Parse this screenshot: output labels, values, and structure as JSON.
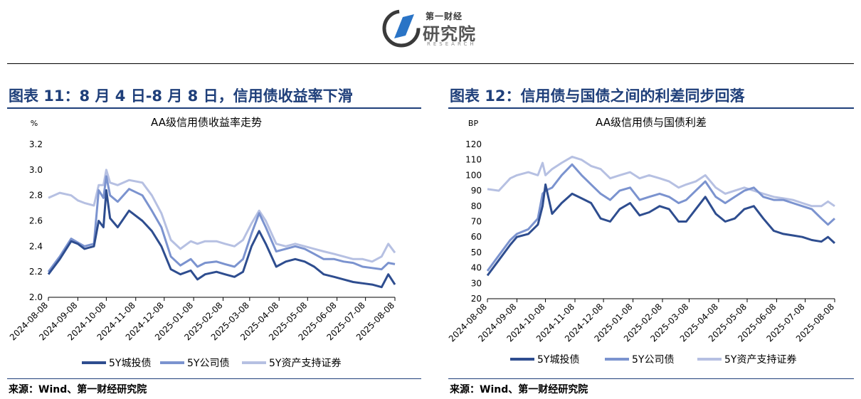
{
  "logo": {
    "small": "第一财经",
    "big": "研究院",
    "tiny": "RESEARCH"
  },
  "figure11": {
    "title": "图表 11：8 月 4 日-8 月 8 日，信用债收益率下滑",
    "source": "来源：Wind、第一财经研究院"
  },
  "figure12": {
    "title": "图表 12：信用债与国债之间的利差同步回落",
    "source": "来源：Wind、第一财经研究院"
  },
  "colors": {
    "title_blue": "#1f3f7a",
    "s1": "#2e4d8f",
    "s2": "#7b93cf",
    "s3": "#b6c0e2"
  },
  "chart_data": [
    {
      "type": "line",
      "title": "AA级信用债收益率走势",
      "ylabel": "%",
      "ylim": [
        2.0,
        3.2
      ],
      "yticks": [
        "2.0",
        "2.2",
        "2.4",
        "2.6",
        "2.8",
        "3.0",
        "3.2"
      ],
      "xticks": [
        "2024-08-08",
        "2024-09-08",
        "2024-10-08",
        "2024-11-08",
        "2024-12-08",
        "2025-01-08",
        "2025-02-08",
        "2025-03-08",
        "2025-04-08",
        "2025-05-08",
        "2025-06-08",
        "2025-07-08",
        "2025-08-08"
      ],
      "legend_position": "bottom",
      "series": [
        {
          "name": "5Y城投债",
          "x": [
            "2024-08-08",
            "2024-08-20",
            "2024-09-01",
            "2024-09-08",
            "2024-09-15",
            "2024-09-25",
            "2024-09-30",
            "2024-10-05",
            "2024-10-08",
            "2024-10-12",
            "2024-10-20",
            "2024-11-01",
            "2024-11-15",
            "2024-11-25",
            "2024-12-05",
            "2024-12-15",
            "2024-12-25",
            "2025-01-05",
            "2025-01-12",
            "2025-01-20",
            "2025-02-01",
            "2025-02-10",
            "2025-02-20",
            "2025-03-01",
            "2025-03-10",
            "2025-03-18",
            "2025-03-25",
            "2025-04-05",
            "2025-04-15",
            "2025-04-25",
            "2025-05-05",
            "2025-05-15",
            "2025-05-25",
            "2025-06-05",
            "2025-06-15",
            "2025-06-25",
            "2025-07-05",
            "2025-07-15",
            "2025-07-25",
            "2025-08-01",
            "2025-08-08"
          ],
          "y": [
            2.18,
            2.3,
            2.44,
            2.42,
            2.38,
            2.4,
            2.6,
            2.55,
            2.84,
            2.62,
            2.55,
            2.68,
            2.6,
            2.52,
            2.4,
            2.22,
            2.18,
            2.21,
            2.14,
            2.18,
            2.2,
            2.18,
            2.16,
            2.2,
            2.4,
            2.52,
            2.42,
            2.24,
            2.28,
            2.3,
            2.28,
            2.24,
            2.18,
            2.16,
            2.14,
            2.12,
            2.11,
            2.1,
            2.08,
            2.18,
            2.1
          ]
        },
        {
          "name": "5Y公司债",
          "x": [
            "2024-08-08",
            "2024-08-20",
            "2024-09-01",
            "2024-09-08",
            "2024-09-15",
            "2024-09-25",
            "2024-09-30",
            "2024-10-05",
            "2024-10-08",
            "2024-10-12",
            "2024-10-20",
            "2024-11-01",
            "2024-11-15",
            "2024-11-25",
            "2024-12-05",
            "2024-12-15",
            "2024-12-25",
            "2025-01-05",
            "2025-01-12",
            "2025-01-20",
            "2025-02-01",
            "2025-02-10",
            "2025-02-20",
            "2025-03-01",
            "2025-03-10",
            "2025-03-18",
            "2025-03-25",
            "2025-04-05",
            "2025-04-15",
            "2025-04-25",
            "2025-05-05",
            "2025-05-15",
            "2025-05-25",
            "2025-06-05",
            "2025-06-15",
            "2025-06-25",
            "2025-07-05",
            "2025-07-15",
            "2025-07-25",
            "2025-08-01",
            "2025-08-08"
          ],
          "y": [
            2.2,
            2.32,
            2.46,
            2.43,
            2.4,
            2.42,
            2.84,
            2.78,
            2.95,
            2.8,
            2.75,
            2.85,
            2.8,
            2.68,
            2.55,
            2.32,
            2.25,
            2.3,
            2.24,
            2.27,
            2.28,
            2.26,
            2.24,
            2.3,
            2.5,
            2.66,
            2.55,
            2.36,
            2.38,
            2.4,
            2.38,
            2.34,
            2.3,
            2.3,
            2.28,
            2.27,
            2.24,
            2.23,
            2.22,
            2.27,
            2.26
          ]
        },
        {
          "name": "5Y资产支持证券",
          "x": [
            "2024-08-08",
            "2024-08-20",
            "2024-09-01",
            "2024-09-08",
            "2024-09-15",
            "2024-09-25",
            "2024-09-30",
            "2024-10-05",
            "2024-10-08",
            "2024-10-12",
            "2024-10-20",
            "2024-11-01",
            "2024-11-15",
            "2024-11-25",
            "2024-12-05",
            "2024-12-15",
            "2024-12-25",
            "2025-01-05",
            "2025-01-12",
            "2025-01-20",
            "2025-02-01",
            "2025-02-10",
            "2025-02-20",
            "2025-03-01",
            "2025-03-10",
            "2025-03-18",
            "2025-03-25",
            "2025-04-05",
            "2025-04-15",
            "2025-04-25",
            "2025-05-05",
            "2025-05-15",
            "2025-05-25",
            "2025-06-05",
            "2025-06-15",
            "2025-06-25",
            "2025-07-05",
            "2025-07-15",
            "2025-07-25",
            "2025-08-01",
            "2025-08-08"
          ],
          "y": [
            2.78,
            2.82,
            2.8,
            2.76,
            2.74,
            2.72,
            2.88,
            2.88,
            3.0,
            2.9,
            2.88,
            2.92,
            2.9,
            2.8,
            2.66,
            2.45,
            2.38,
            2.44,
            2.42,
            2.44,
            2.44,
            2.42,
            2.4,
            2.45,
            2.58,
            2.68,
            2.6,
            2.42,
            2.4,
            2.42,
            2.4,
            2.38,
            2.36,
            2.34,
            2.32,
            2.3,
            2.3,
            2.28,
            2.32,
            2.42,
            2.35
          ]
        }
      ]
    },
    {
      "type": "line",
      "title": "AA级信用债与国债利差",
      "ylabel": "BP",
      "ylim": [
        20,
        120
      ],
      "yticks": [
        "20",
        "30",
        "40",
        "50",
        "60",
        "70",
        "80",
        "90",
        "100",
        "110",
        "120"
      ],
      "xticks": [
        "2024-08-08",
        "2024-09-08",
        "2024-10-08",
        "2024-11-08",
        "2024-12-08",
        "2025-01-08",
        "2025-02-08",
        "2025-03-08",
        "2025-04-08",
        "2025-05-08",
        "2025-06-08",
        "2025-07-08",
        "2025-08-08"
      ],
      "legend_position": "bottom",
      "series": [
        {
          "name": "5Y城投债",
          "x": [
            "2024-08-08",
            "2024-08-20",
            "2024-09-01",
            "2024-09-08",
            "2024-09-20",
            "2024-09-30",
            "2024-10-05",
            "2024-10-08",
            "2024-10-15",
            "2024-10-25",
            "2024-11-05",
            "2024-11-15",
            "2024-11-25",
            "2024-12-05",
            "2024-12-15",
            "2024-12-25",
            "2025-01-05",
            "2025-01-15",
            "2025-01-25",
            "2025-02-05",
            "2025-02-15",
            "2025-02-25",
            "2025-03-05",
            "2025-03-15",
            "2025-03-25",
            "2025-04-05",
            "2025-04-15",
            "2025-04-25",
            "2025-05-05",
            "2025-05-15",
            "2025-05-25",
            "2025-06-05",
            "2025-06-15",
            "2025-06-25",
            "2025-07-05",
            "2025-07-15",
            "2025-07-25",
            "2025-08-01",
            "2025-08-08"
          ],
          "y": [
            35,
            45,
            55,
            60,
            62,
            68,
            80,
            94,
            75,
            82,
            88,
            85,
            82,
            72,
            70,
            78,
            82,
            74,
            76,
            80,
            78,
            70,
            70,
            78,
            86,
            75,
            70,
            72,
            78,
            80,
            72,
            64,
            62,
            61,
            60,
            58,
            57,
            60,
            56
          ]
        },
        {
          "name": "5Y公司债",
          "x": [
            "2024-08-08",
            "2024-08-20",
            "2024-09-01",
            "2024-09-08",
            "2024-09-20",
            "2024-09-30",
            "2024-10-05",
            "2024-10-08",
            "2024-10-15",
            "2024-10-25",
            "2024-11-05",
            "2024-11-15",
            "2024-11-25",
            "2024-12-05",
            "2024-12-15",
            "2024-12-25",
            "2025-01-05",
            "2025-01-15",
            "2025-01-25",
            "2025-02-05",
            "2025-02-15",
            "2025-02-25",
            "2025-03-05",
            "2025-03-15",
            "2025-03-25",
            "2025-04-05",
            "2025-04-15",
            "2025-04-25",
            "2025-05-05",
            "2025-05-15",
            "2025-05-25",
            "2025-06-05",
            "2025-06-15",
            "2025-06-25",
            "2025-07-05",
            "2025-07-15",
            "2025-07-25",
            "2025-08-01",
            "2025-08-08"
          ],
          "y": [
            38,
            48,
            58,
            62,
            65,
            72,
            88,
            90,
            92,
            100,
            107,
            100,
            94,
            88,
            84,
            90,
            92,
            84,
            86,
            88,
            86,
            82,
            84,
            90,
            96,
            86,
            82,
            86,
            90,
            92,
            86,
            84,
            84,
            82,
            80,
            78,
            72,
            68,
            72
          ]
        },
        {
          "name": "5Y资产支持证券",
          "x": [
            "2024-08-08",
            "2024-08-20",
            "2024-09-01",
            "2024-09-08",
            "2024-09-20",
            "2024-09-30",
            "2024-10-05",
            "2024-10-08",
            "2024-10-15",
            "2024-10-25",
            "2024-11-05",
            "2024-11-15",
            "2024-11-25",
            "2024-12-05",
            "2024-12-15",
            "2024-12-25",
            "2025-01-05",
            "2025-01-15",
            "2025-01-25",
            "2025-02-05",
            "2025-02-15",
            "2025-02-25",
            "2025-03-05",
            "2025-03-15",
            "2025-03-25",
            "2025-04-05",
            "2025-04-15",
            "2025-04-25",
            "2025-05-05",
            "2025-05-15",
            "2025-05-25",
            "2025-06-05",
            "2025-06-15",
            "2025-06-25",
            "2025-07-05",
            "2025-07-15",
            "2025-07-25",
            "2025-08-01",
            "2025-08-08"
          ],
          "y": [
            91,
            90,
            98,
            100,
            102,
            100,
            108,
            100,
            104,
            108,
            112,
            110,
            106,
            104,
            98,
            100,
            102,
            98,
            100,
            98,
            96,
            92,
            94,
            96,
            100,
            92,
            88,
            90,
            92,
            90,
            88,
            86,
            85,
            84,
            82,
            80,
            80,
            83,
            80
          ]
        }
      ]
    }
  ]
}
